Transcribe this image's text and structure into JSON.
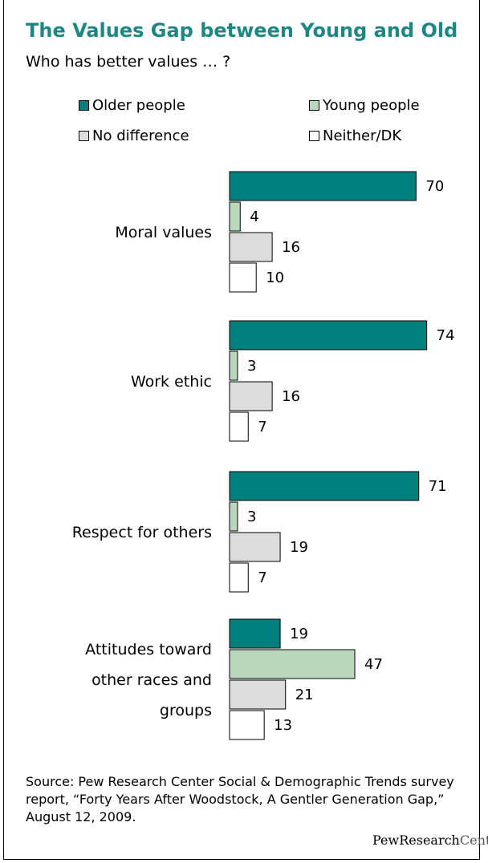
{
  "title": "The Values Gap between Young and Old",
  "subtitle": "Who has better values … ?",
  "legend": [
    {
      "label": "Older people",
      "color": "#007f7d"
    },
    {
      "label": "Young people",
      "color": "#b8d7bb"
    },
    {
      "label": "No difference",
      "color": "#dcdcdc"
    },
    {
      "label": "Neither/DK",
      "color": "#ffffff"
    }
  ],
  "chart_data": {
    "type": "bar",
    "orientation": "horizontal",
    "categories": [
      "Moral values",
      "Work ethic",
      "Respect for others",
      "Attitudes toward other races and groups"
    ],
    "category_lines": [
      [
        "Moral values"
      ],
      [
        "Work ethic"
      ],
      [
        "Respect for others"
      ],
      [
        "Attitudes toward",
        "other races and",
        "groups"
      ]
    ],
    "series": [
      {
        "name": "Older people",
        "values": [
          70,
          74,
          71,
          19
        ],
        "color": "#007f7d"
      },
      {
        "name": "Young people",
        "values": [
          4,
          3,
          3,
          47
        ],
        "color": "#b8d7bb"
      },
      {
        "name": "No difference",
        "values": [
          16,
          16,
          19,
          21
        ],
        "color": "#dcdcdc"
      },
      {
        "name": "Neither/DK",
        "values": [
          10,
          7,
          7,
          13
        ],
        "color": "#ffffff"
      }
    ],
    "data_labels": true,
    "legend_position": "top"
  },
  "source": "Source: Pew Research Center Social & Demographic Trends survey report, “Forty Years After Woodstock, A Gentler Generation Gap,” August 12, 2009.",
  "brand": {
    "part1": "PewResearch",
    "part2": "Center"
  }
}
